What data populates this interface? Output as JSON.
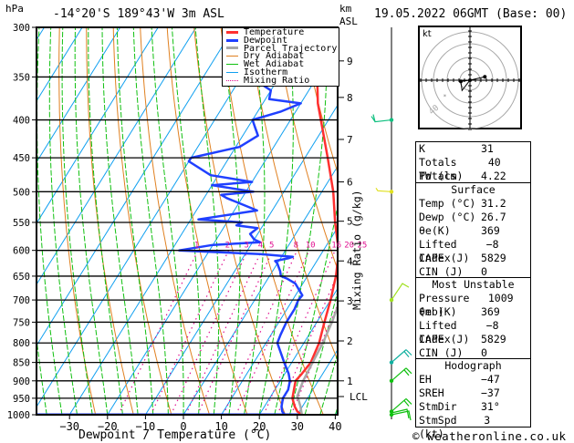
{
  "header": {
    "location": "-14°20'S  189°43'W  3m  ASL",
    "datetime": "19.05.2022  06GMT  (Base: 00)",
    "left_unit": "hPa",
    "right_unit_line1": "km",
    "right_unit_line2": "ASL"
  },
  "legend": [
    {
      "label": "Temperature",
      "color": "#ff3030",
      "style": "solid-thick"
    },
    {
      "label": "Dewpoint",
      "color": "#2040ff",
      "style": "solid-thick"
    },
    {
      "label": "Parcel Trajectory",
      "color": "#a8a8a8",
      "style": "solid-thick"
    },
    {
      "label": "Dry Adiabat",
      "color": "#e08020",
      "style": "solid"
    },
    {
      "label": "Wet Adiabat",
      "color": "#10c010",
      "style": "solid"
    },
    {
      "label": "Isotherm",
      "color": "#10a0f0",
      "style": "solid"
    },
    {
      "label": "Mixing Ratio",
      "color": "#e01090",
      "style": "dotted"
    }
  ],
  "chart_data": {
    "type": "line",
    "title": "-14°20'S 189°43'W 3m ASL",
    "xlabel": "Dewpoint / Temperature (°C)",
    "ylabel": "hPa",
    "y2label": "Mixing Ratio (g/kg)",
    "xlim": [
      -40,
      40
    ],
    "x_ticks": [
      -30,
      -20,
      -10,
      0,
      10,
      20,
      30,
      40
    ],
    "pressure_levels": [
      300,
      350,
      400,
      450,
      500,
      550,
      600,
      650,
      700,
      750,
      800,
      850,
      900,
      950,
      1000
    ],
    "ylim_hpa": [
      1000,
      300
    ],
    "km_ticks": [
      {
        "km": "9",
        "p": 333
      },
      {
        "km": "8",
        "p": 373
      },
      {
        "km": "7",
        "p": 425
      },
      {
        "km": "6",
        "p": 485
      },
      {
        "km": "5",
        "p": 548
      },
      {
        "km": "4",
        "p": 620
      },
      {
        "km": "3",
        "p": 702
      },
      {
        "km": "2",
        "p": 795
      },
      {
        "km": "1",
        "p": 900
      },
      {
        "km": "LCL",
        "p": 945
      }
    ],
    "mixing_ratio_labels": [
      "1",
      "2",
      "3",
      "4",
      "5",
      "8",
      "10",
      "16",
      "20",
      "25"
    ],
    "series": [
      {
        "name": "Temperature",
        "points": [
          [
            1000,
            31.2
          ],
          [
            990,
            29.5
          ],
          [
            975,
            28
          ],
          [
            950,
            26
          ],
          [
            925,
            25
          ],
          [
            900,
            24
          ],
          [
            880,
            24.5
          ],
          [
            850,
            25
          ],
          [
            800,
            24
          ],
          [
            750,
            22
          ],
          [
            700,
            20
          ],
          [
            650,
            17.5
          ],
          [
            620,
            15.5
          ],
          [
            605,
            16
          ],
          [
            600,
            14
          ],
          [
            550,
            8.5
          ],
          [
            500,
            3
          ],
          [
            450,
            -4
          ],
          [
            400,
            -12
          ],
          [
            380,
            -15.5
          ],
          [
            350,
            -20
          ],
          [
            320,
            -25.5
          ],
          [
            300,
            -30
          ]
        ]
      },
      {
        "name": "Dewpoint",
        "points": [
          [
            1000,
            26.7
          ],
          [
            990,
            25.5
          ],
          [
            975,
            24.5
          ],
          [
            950,
            23.5
          ],
          [
            925,
            23.5
          ],
          [
            900,
            22.5
          ],
          [
            880,
            21
          ],
          [
            850,
            18
          ],
          [
            800,
            13
          ],
          [
            780,
            12.5
          ],
          [
            750,
            12
          ],
          [
            720,
            12
          ],
          [
            700,
            11.5
          ],
          [
            690,
            11.8
          ],
          [
            665,
            8
          ],
          [
            655,
            5
          ],
          [
            650,
            3
          ],
          [
            640,
            2
          ],
          [
            625,
            0
          ],
          [
            620,
            -1
          ],
          [
            615,
            2
          ],
          [
            612,
            3
          ],
          [
            607,
            -6
          ],
          [
            600,
            -28
          ],
          [
            590,
            -20
          ],
          [
            585,
            -8
          ],
          [
            580,
            -10
          ],
          [
            570,
            -12
          ],
          [
            560,
            -11
          ],
          [
            555,
            -17
          ],
          [
            550,
            -16
          ],
          [
            545,
            -28
          ],
          [
            530,
            -14
          ],
          [
            510,
            -24
          ],
          [
            505,
            -26
          ],
          [
            500,
            -18
          ],
          [
            490,
            -30
          ],
          [
            485,
            -20
          ],
          [
            475,
            -32
          ],
          [
            455,
            -40
          ],
          [
            450,
            -40
          ],
          [
            435,
            -29
          ],
          [
            420,
            -26
          ],
          [
            410,
            -28
          ],
          [
            400,
            -30
          ],
          [
            390,
            -24
          ],
          [
            380,
            -20
          ],
          [
            375,
            -29
          ],
          [
            365,
            -30
          ],
          [
            355,
            -35
          ],
          [
            350,
            -40
          ],
          [
            335,
            -33
          ],
          [
            310,
            -32
          ],
          [
            300,
            -34
          ]
        ]
      },
      {
        "name": "Parcel Trajectory",
        "points": [
          [
            1000,
            31.2
          ],
          [
            975,
            29.5
          ],
          [
            950,
            27.5
          ],
          [
            945,
            27
          ],
          [
            900,
            26
          ],
          [
            850,
            25.5
          ],
          [
            800,
            25
          ],
          [
            750,
            24
          ],
          [
            700,
            22.5
          ],
          [
            650,
            21
          ],
          [
            600,
            19
          ],
          [
            550,
            16
          ],
          [
            500,
            12.5
          ],
          [
            450,
            8
          ],
          [
            400,
            2.5
          ],
          [
            370,
            -1
          ]
        ]
      }
    ],
    "wind_barbs": [
      {
        "p": 1000,
        "color": "#10c010"
      },
      {
        "p": 990,
        "color": "#10c010"
      },
      {
        "p": 900,
        "color": "#10c010"
      },
      {
        "p": 850,
        "color": "#10b0a0"
      },
      {
        "p": 700,
        "color": "#a0e020"
      },
      {
        "p": 500,
        "color": "#e0e020"
      },
      {
        "p": 400,
        "color": "#10c080"
      }
    ]
  },
  "hodograph": {
    "unit_label": "kt",
    "ring_labels": [
      "10",
      "40"
    ],
    "hodo_points_kt": [
      [
        0,
        0
      ],
      [
        -8,
        -1
      ],
      [
        -7,
        -9
      ],
      [
        0,
        0
      ],
      [
        13,
        3
      ]
    ]
  },
  "indices": {
    "top": [
      {
        "label": "K",
        "value": "31"
      },
      {
        "label": "Totals Totals",
        "value": "40"
      },
      {
        "label": "PW (cm)",
        "value": "4.22"
      }
    ],
    "surface": {
      "title": "Surface",
      "rows": [
        {
          "label": "Temp (°C)",
          "value": "31.2"
        },
        {
          "label": "Dewp (°C)",
          "value": "26.7"
        },
        {
          "label": "θe(K)",
          "value": "369"
        },
        {
          "label": "Lifted Index",
          "value": "-8"
        },
        {
          "label": "CAPE (J)",
          "value": "5829"
        },
        {
          "label": "CIN (J)",
          "value": "0"
        }
      ]
    },
    "most_unstable": {
      "title": "Most Unstable",
      "rows": [
        {
          "label": "Pressure (mb)",
          "value": "1009"
        },
        {
          "label": "θe (K)",
          "value": "369"
        },
        {
          "label": "Lifted Index",
          "value": "-8"
        },
        {
          "label": "CAPE (J)",
          "value": "5829"
        },
        {
          "label": "CIN (J)",
          "value": "0"
        }
      ]
    },
    "hodograph": {
      "title": "Hodograph",
      "rows": [
        {
          "label": "EH",
          "value": "-47"
        },
        {
          "label": "SREH",
          "value": "-37"
        },
        {
          "label": "StmDir",
          "value": "31°"
        },
        {
          "label": "StmSpd (kt)",
          "value": "3"
        }
      ]
    }
  },
  "footer": {
    "copyright": "© weatheronline.co.uk"
  }
}
